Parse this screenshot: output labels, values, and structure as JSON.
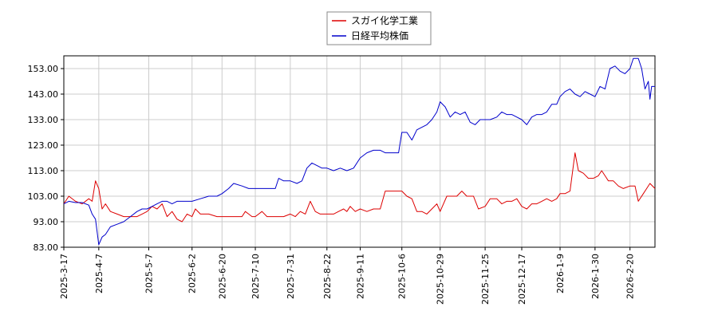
{
  "chart_data": {
    "type": "line",
    "legend": {
      "position": "top-center",
      "entries": [
        {
          "name": "スガイ化学工業",
          "color": "#dd0000"
        },
        {
          "name": "日経平均株価",
          "color": "#0000cc"
        }
      ]
    },
    "grid": true,
    "y_ticks": [
      "83.00",
      "93.00",
      "103.00",
      "113.00",
      "123.00",
      "133.00",
      "143.00",
      "153.00"
    ],
    "ylim": [
      83,
      158
    ],
    "x_ticks": [
      "2025-3-17",
      "2025-4-7",
      "2025-5-7",
      "2025-6-2",
      "2025-6-20",
      "2025-7-10",
      "2025-7-31",
      "2025-8-22",
      "2025-9-11",
      "2025-10-6",
      "2025-10-29",
      "2025-11-25",
      "2025-12-17",
      "2026-1-9",
      "2026-1-30",
      "2026-2-20"
    ],
    "xlim": [
      "2025-03-17",
      "2026-03-07"
    ],
    "series": [
      {
        "name": "スガイ化学工業",
        "color": "#dd0000",
        "points": [
          [
            "2025-03-17",
            100
          ],
          [
            "2025-03-20",
            103
          ],
          [
            "2025-03-24",
            101
          ],
          [
            "2025-03-28",
            100
          ],
          [
            "2025-04-01",
            102
          ],
          [
            "2025-04-03",
            101
          ],
          [
            "2025-04-05",
            109
          ],
          [
            "2025-04-07",
            106
          ],
          [
            "2025-04-09",
            98
          ],
          [
            "2025-04-11",
            100
          ],
          [
            "2025-04-14",
            97
          ],
          [
            "2025-04-18",
            96
          ],
          [
            "2025-04-22",
            95
          ],
          [
            "2025-04-26",
            95
          ],
          [
            "2025-04-30",
            95
          ],
          [
            "2025-05-03",
            96
          ],
          [
            "2025-05-06",
            97
          ],
          [
            "2025-05-09",
            99
          ],
          [
            "2025-05-12",
            98
          ],
          [
            "2025-05-15",
            100
          ],
          [
            "2025-05-18",
            95
          ],
          [
            "2025-05-21",
            97
          ],
          [
            "2025-05-24",
            94
          ],
          [
            "2025-05-27",
            93
          ],
          [
            "2025-05-30",
            96
          ],
          [
            "2025-06-02",
            95
          ],
          [
            "2025-06-04",
            98
          ],
          [
            "2025-06-07",
            96
          ],
          [
            "2025-06-12",
            96
          ],
          [
            "2025-06-17",
            95
          ],
          [
            "2025-06-22",
            95
          ],
          [
            "2025-06-27",
            95
          ],
          [
            "2025-07-02",
            95
          ],
          [
            "2025-07-04",
            97
          ],
          [
            "2025-07-06",
            96
          ],
          [
            "2025-07-08",
            95
          ],
          [
            "2025-07-10",
            95
          ],
          [
            "2025-07-14",
            97
          ],
          [
            "2025-07-17",
            95
          ],
          [
            "2025-07-22",
            95
          ],
          [
            "2025-07-27",
            95
          ],
          [
            "2025-07-31",
            96
          ],
          [
            "2025-08-03",
            95
          ],
          [
            "2025-08-06",
            97
          ],
          [
            "2025-08-09",
            96
          ],
          [
            "2025-08-12",
            101
          ],
          [
            "2025-08-15",
            97
          ],
          [
            "2025-08-18",
            96
          ],
          [
            "2025-08-22",
            96
          ],
          [
            "2025-08-26",
            96
          ],
          [
            "2025-08-29",
            97
          ],
          [
            "2025-09-01",
            98
          ],
          [
            "2025-09-03",
            97
          ],
          [
            "2025-09-05",
            99
          ],
          [
            "2025-09-08",
            97
          ],
          [
            "2025-09-11",
            98
          ],
          [
            "2025-09-15",
            97
          ],
          [
            "2025-09-19",
            98
          ],
          [
            "2025-09-23",
            98
          ],
          [
            "2025-09-26",
            105
          ],
          [
            "2025-09-30",
            105
          ],
          [
            "2025-10-04",
            105
          ],
          [
            "2025-10-06",
            105
          ],
          [
            "2025-10-09",
            103
          ],
          [
            "2025-10-12",
            102
          ],
          [
            "2025-10-15",
            97
          ],
          [
            "2025-10-18",
            97
          ],
          [
            "2025-10-21",
            96
          ],
          [
            "2025-10-24",
            98
          ],
          [
            "2025-10-27",
            100
          ],
          [
            "2025-10-29",
            97
          ],
          [
            "2025-11-02",
            103
          ],
          [
            "2025-11-05",
            103
          ],
          [
            "2025-11-08",
            103
          ],
          [
            "2025-11-11",
            105
          ],
          [
            "2025-11-14",
            103
          ],
          [
            "2025-11-18",
            103
          ],
          [
            "2025-11-21",
            98
          ],
          [
            "2025-11-25",
            99
          ],
          [
            "2025-11-28",
            102
          ],
          [
            "2025-12-02",
            102
          ],
          [
            "2025-12-05",
            100
          ],
          [
            "2025-12-08",
            101
          ],
          [
            "2025-12-11",
            101
          ],
          [
            "2025-12-14",
            102
          ],
          [
            "2025-12-17",
            99
          ],
          [
            "2025-12-20",
            98
          ],
          [
            "2025-12-23",
            100
          ],
          [
            "2025-12-26",
            100
          ],
          [
            "2025-12-29",
            101
          ],
          [
            "2026-01-01",
            102
          ],
          [
            "2026-01-04",
            101
          ],
          [
            "2026-01-07",
            102
          ],
          [
            "2026-01-09",
            104
          ],
          [
            "2026-01-12",
            104
          ],
          [
            "2026-01-15",
            105
          ],
          [
            "2026-01-18",
            120
          ],
          [
            "2026-01-20",
            113
          ],
          [
            "2026-01-23",
            112
          ],
          [
            "2026-01-26",
            110
          ],
          [
            "2026-01-29",
            110
          ],
          [
            "2026-02-01",
            111
          ],
          [
            "2026-02-03",
            113
          ],
          [
            "2026-02-05",
            111
          ],
          [
            "2026-02-07",
            109
          ],
          [
            "2026-02-10",
            109
          ],
          [
            "2026-02-13",
            107
          ],
          [
            "2026-02-16",
            106
          ],
          [
            "2026-02-20",
            107
          ],
          [
            "2026-02-23",
            107
          ],
          [
            "2026-02-25",
            101
          ],
          [
            "2026-02-28",
            104
          ],
          [
            "2026-03-02",
            106
          ],
          [
            "2026-03-04",
            108
          ],
          [
            "2026-03-07",
            106
          ]
        ]
      },
      {
        "name": "日経平均株価",
        "color": "#0000cc",
        "points": [
          [
            "2025-03-17",
            100
          ],
          [
            "2025-03-20",
            101
          ],
          [
            "2025-03-24",
            100.5
          ],
          [
            "2025-03-28",
            100.5
          ],
          [
            "2025-04-01",
            99.5
          ],
          [
            "2025-04-03",
            96
          ],
          [
            "2025-04-05",
            94
          ],
          [
            "2025-04-07",
            84
          ],
          [
            "2025-04-09",
            87
          ],
          [
            "2025-04-11",
            88
          ],
          [
            "2025-04-14",
            91
          ],
          [
            "2025-04-18",
            92
          ],
          [
            "2025-04-22",
            93
          ],
          [
            "2025-04-26",
            95
          ],
          [
            "2025-04-30",
            97
          ],
          [
            "2025-05-03",
            98
          ],
          [
            "2025-05-06",
            98
          ],
          [
            "2025-05-09",
            99
          ],
          [
            "2025-05-12",
            100
          ],
          [
            "2025-05-15",
            101
          ],
          [
            "2025-05-18",
            101
          ],
          [
            "2025-05-21",
            100
          ],
          [
            "2025-05-24",
            101
          ],
          [
            "2025-05-27",
            101
          ],
          [
            "2025-05-30",
            101
          ],
          [
            "2025-06-02",
            101
          ],
          [
            "2025-06-07",
            102
          ],
          [
            "2025-06-12",
            103
          ],
          [
            "2025-06-17",
            103
          ],
          [
            "2025-06-20",
            104
          ],
          [
            "2025-06-24",
            106
          ],
          [
            "2025-06-27",
            108
          ],
          [
            "2025-07-02",
            107
          ],
          [
            "2025-07-06",
            106
          ],
          [
            "2025-07-10",
            106
          ],
          [
            "2025-07-14",
            106
          ],
          [
            "2025-07-18",
            106
          ],
          [
            "2025-07-22",
            106
          ],
          [
            "2025-07-24",
            110
          ],
          [
            "2025-07-27",
            109
          ],
          [
            "2025-07-31",
            109
          ],
          [
            "2025-08-04",
            108
          ],
          [
            "2025-08-07",
            109
          ],
          [
            "2025-08-10",
            114
          ],
          [
            "2025-08-13",
            116
          ],
          [
            "2025-08-16",
            115
          ],
          [
            "2025-08-19",
            114
          ],
          [
            "2025-08-22",
            114
          ],
          [
            "2025-08-26",
            113
          ],
          [
            "2025-08-30",
            114
          ],
          [
            "2025-09-03",
            113
          ],
          [
            "2025-09-07",
            114
          ],
          [
            "2025-09-11",
            118
          ],
          [
            "2025-09-15",
            120
          ],
          [
            "2025-09-19",
            121
          ],
          [
            "2025-09-23",
            121
          ],
          [
            "2025-09-26",
            120
          ],
          [
            "2025-09-30",
            120
          ],
          [
            "2025-10-04",
            120
          ],
          [
            "2025-10-06",
            128
          ],
          [
            "2025-10-09",
            128
          ],
          [
            "2025-10-12",
            125
          ],
          [
            "2025-10-15",
            129
          ],
          [
            "2025-10-18",
            130
          ],
          [
            "2025-10-21",
            131
          ],
          [
            "2025-10-24",
            133
          ],
          [
            "2025-10-27",
            136
          ],
          [
            "2025-10-29",
            140
          ],
          [
            "2025-11-01",
            138
          ],
          [
            "2025-11-04",
            134
          ],
          [
            "2025-11-07",
            136
          ],
          [
            "2025-11-10",
            135
          ],
          [
            "2025-11-13",
            136
          ],
          [
            "2025-11-16",
            132
          ],
          [
            "2025-11-19",
            131
          ],
          [
            "2025-11-22",
            133
          ],
          [
            "2025-11-25",
            133
          ],
          [
            "2025-11-28",
            133
          ],
          [
            "2025-12-02",
            134
          ],
          [
            "2025-12-05",
            136
          ],
          [
            "2025-12-08",
            135
          ],
          [
            "2025-12-11",
            135
          ],
          [
            "2025-12-14",
            134
          ],
          [
            "2025-12-17",
            133
          ],
          [
            "2025-12-20",
            131
          ],
          [
            "2025-12-23",
            134
          ],
          [
            "2025-12-26",
            135
          ],
          [
            "2025-12-29",
            135
          ],
          [
            "2026-01-01",
            136
          ],
          [
            "2026-01-04",
            139
          ],
          [
            "2026-01-07",
            139
          ],
          [
            "2026-01-09",
            142
          ],
          [
            "2026-01-12",
            144
          ],
          [
            "2026-01-15",
            145
          ],
          [
            "2026-01-18",
            143
          ],
          [
            "2026-01-21",
            142
          ],
          [
            "2026-01-24",
            144
          ],
          [
            "2026-01-27",
            143
          ],
          [
            "2026-01-30",
            142
          ],
          [
            "2026-02-02",
            146
          ],
          [
            "2026-02-05",
            145
          ],
          [
            "2026-02-08",
            153
          ],
          [
            "2026-02-11",
            154
          ],
          [
            "2026-02-14",
            152
          ],
          [
            "2026-02-17",
            151
          ],
          [
            "2026-02-20",
            153
          ],
          [
            "2026-02-22",
            157
          ],
          [
            "2026-02-25",
            157
          ],
          [
            "2026-02-27",
            153
          ],
          [
            "2026-03-01",
            145
          ],
          [
            "2026-03-03",
            148
          ],
          [
            "2026-03-04",
            141
          ],
          [
            "2026-03-05",
            146
          ],
          [
            "2026-03-07",
            146
          ]
        ]
      }
    ]
  }
}
